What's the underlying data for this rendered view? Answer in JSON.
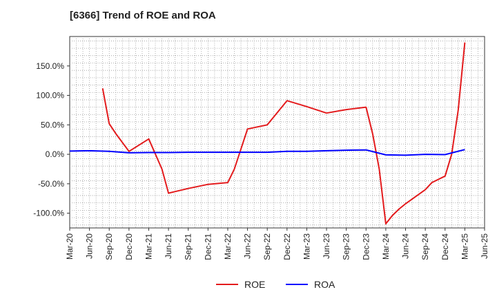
{
  "chart_data": {
    "type": "line",
    "title": "[6366]  Trend of ROE and ROA",
    "xlabel": "",
    "ylabel": "",
    "ylim": [
      -125,
      200
    ],
    "grid": true,
    "legend_position": "bottom",
    "x_tick_labels": [
      "Mar-20",
      "Jun-20",
      "Sep-20",
      "Dec-20",
      "Mar-21",
      "Jun-21",
      "Sep-21",
      "Dec-21",
      "Mar-22",
      "Jun-22",
      "Sep-22",
      "Dec-22",
      "Mar-23",
      "Jun-23",
      "Sep-23",
      "Dec-23",
      "Mar-24",
      "Jun-24",
      "Sep-24",
      "Dec-24",
      "Mar-25",
      "Jun-25"
    ],
    "y_ticks": [
      {
        "value": 150,
        "label": "150.0%"
      },
      {
        "value": 100,
        "label": "100.0%"
      },
      {
        "value": 50,
        "label": "50.0%"
      },
      {
        "value": 0,
        "label": "0.0%"
      },
      {
        "value": -50,
        "label": "-50.0%"
      },
      {
        "value": -100,
        "label": "-100.0%"
      }
    ],
    "series": [
      {
        "name": "ROE",
        "color": "#e31a1c",
        "points": [
          [
            "Aug-20",
            112
          ],
          [
            "Sep-20",
            52
          ],
          [
            "Oct-20",
            35
          ],
          [
            "Dec-20",
            5
          ],
          [
            "Mar-21",
            26
          ],
          [
            "May-21",
            -25
          ],
          [
            "Jun-21",
            -66
          ],
          [
            "Sep-21",
            -58
          ],
          [
            "Dec-21",
            -51
          ],
          [
            "Mar-22",
            -48
          ],
          [
            "Apr-22",
            -25
          ],
          [
            "Jun-22",
            43
          ],
          [
            "Sep-22",
            50
          ],
          [
            "Dec-22",
            91
          ],
          [
            "Mar-23",
            81
          ],
          [
            "Jun-23",
            70
          ],
          [
            "Sep-23",
            76
          ],
          [
            "Dec-23",
            80
          ],
          [
            "Jan-24",
            35
          ],
          [
            "Feb-24",
            -25
          ],
          [
            "Mar-24",
            -118
          ],
          [
            "Apr-24",
            -104
          ],
          [
            "May-24",
            -93
          ],
          [
            "Jun-24",
            -84
          ],
          [
            "Sep-24",
            -60
          ],
          [
            "Oct-24",
            -48
          ],
          [
            "Dec-24",
            -37
          ],
          [
            "Jan-25",
            0
          ],
          [
            "Feb-25",
            75
          ],
          [
            "Mar-25",
            190
          ]
        ]
      },
      {
        "name": "ROA",
        "color": "#0000ff",
        "points": [
          [
            "Mar-20",
            5.5
          ],
          [
            "Jun-20",
            6.0
          ],
          [
            "Sep-20",
            5.0
          ],
          [
            "Dec-20",
            2.5
          ],
          [
            "Mar-21",
            3.0
          ],
          [
            "Jun-21",
            3.0
          ],
          [
            "Sep-21",
            3.5
          ],
          [
            "Dec-21",
            3.5
          ],
          [
            "Mar-22",
            3.5
          ],
          [
            "Jun-22",
            3.5
          ],
          [
            "Sep-22",
            3.5
          ],
          [
            "Dec-22",
            5.0
          ],
          [
            "Mar-23",
            5.0
          ],
          [
            "Jun-23",
            6.0
          ],
          [
            "Sep-23",
            7.0
          ],
          [
            "Dec-23",
            7.5
          ],
          [
            "Mar-24",
            -1.0
          ],
          [
            "Jun-24",
            -1.5
          ],
          [
            "Sep-24",
            0
          ],
          [
            "Dec-24",
            -0.5
          ],
          [
            "Mar-25",
            8.0
          ]
        ]
      }
    ]
  }
}
